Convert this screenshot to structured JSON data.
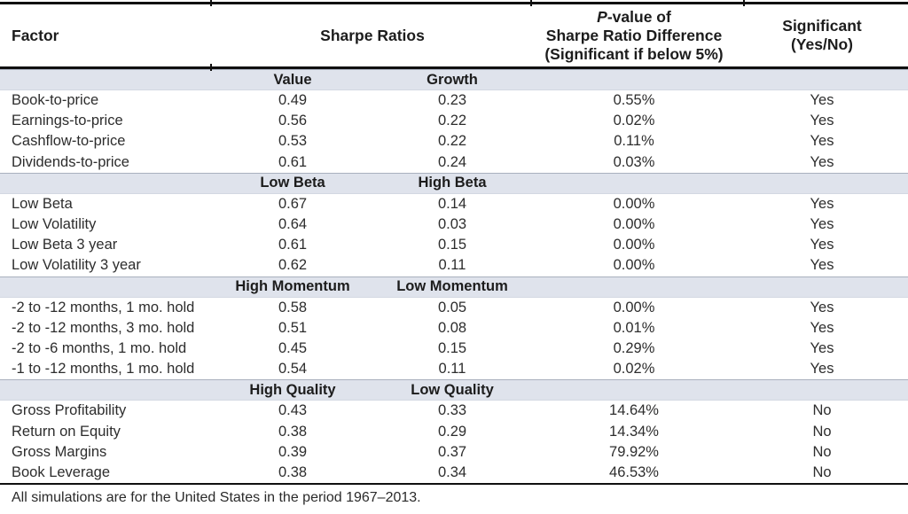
{
  "header": {
    "factor": "Factor",
    "sharpe_ratios": "Sharpe Ratios",
    "pvalue_p": "P",
    "pvalue_rest": "-value of",
    "pvalue_line2": "Sharpe Ratio Difference",
    "pvalue_line3": "(Significant if below 5%)",
    "significant_line1": "Significant",
    "significant_line2": "(Yes/No)"
  },
  "sections": [
    {
      "col_a": "Value",
      "col_b": "Growth",
      "rows": [
        {
          "factor": "Book-to-price",
          "a": "0.49",
          "b": "0.23",
          "p": "0.55%",
          "sig": "Yes"
        },
        {
          "factor": "Earnings-to-price",
          "a": "0.56",
          "b": "0.22",
          "p": "0.02%",
          "sig": "Yes"
        },
        {
          "factor": "Cashflow-to-price",
          "a": "0.53",
          "b": "0.22",
          "p": "0.11%",
          "sig": "Yes"
        },
        {
          "factor": "Dividends-to-price",
          "a": "0.61",
          "b": "0.24",
          "p": "0.03%",
          "sig": "Yes"
        }
      ]
    },
    {
      "col_a": "Low Beta",
      "col_b": "High Beta",
      "rows": [
        {
          "factor": "Low Beta",
          "a": "0.67",
          "b": "0.14",
          "p": "0.00%",
          "sig": "Yes"
        },
        {
          "factor": "Low Volatility",
          "a": "0.64",
          "b": "0.03",
          "p": "0.00%",
          "sig": "Yes"
        },
        {
          "factor": "Low Beta 3 year",
          "a": "0.61",
          "b": "0.15",
          "p": "0.00%",
          "sig": "Yes"
        },
        {
          "factor": "Low Volatility 3 year",
          "a": "0.62",
          "b": "0.11",
          "p": "0.00%",
          "sig": "Yes"
        }
      ]
    },
    {
      "col_a": "High Momentum",
      "col_b": "Low Momentum",
      "rows": [
        {
          "factor": "-2 to -12 months, 1 mo. hold",
          "a": "0.58",
          "b": "0.05",
          "p": "0.00%",
          "sig": "Yes"
        },
        {
          "factor": "-2 to -12 months, 3 mo. hold",
          "a": "0.51",
          "b": "0.08",
          "p": "0.01%",
          "sig": "Yes"
        },
        {
          "factor": "-2 to -6 months, 1 mo. hold",
          "a": "0.45",
          "b": "0.15",
          "p": "0.29%",
          "sig": "Yes"
        },
        {
          "factor": "-1 to -12 months, 1 mo. hold",
          "a": "0.54",
          "b": "0.11",
          "p": "0.02%",
          "sig": "Yes"
        }
      ]
    },
    {
      "col_a": "High Quality",
      "col_b": "Low Quality",
      "rows": [
        {
          "factor": "Gross Profitability",
          "a": "0.43",
          "b": "0.33",
          "p": "14.64%",
          "sig": "No"
        },
        {
          "factor": "Return on Equity",
          "a": "0.38",
          "b": "0.29",
          "p": "14.34%",
          "sig": "No"
        },
        {
          "factor": "Gross Margins",
          "a": "0.39",
          "b": "0.37",
          "p": "79.92%",
          "sig": "No"
        },
        {
          "factor": "Book Leverage",
          "a": "0.38",
          "b": "0.34",
          "p": "46.53%",
          "sig": "No"
        }
      ]
    }
  ],
  "footnote": "All simulations are for the United States in the period 1967–2013."
}
